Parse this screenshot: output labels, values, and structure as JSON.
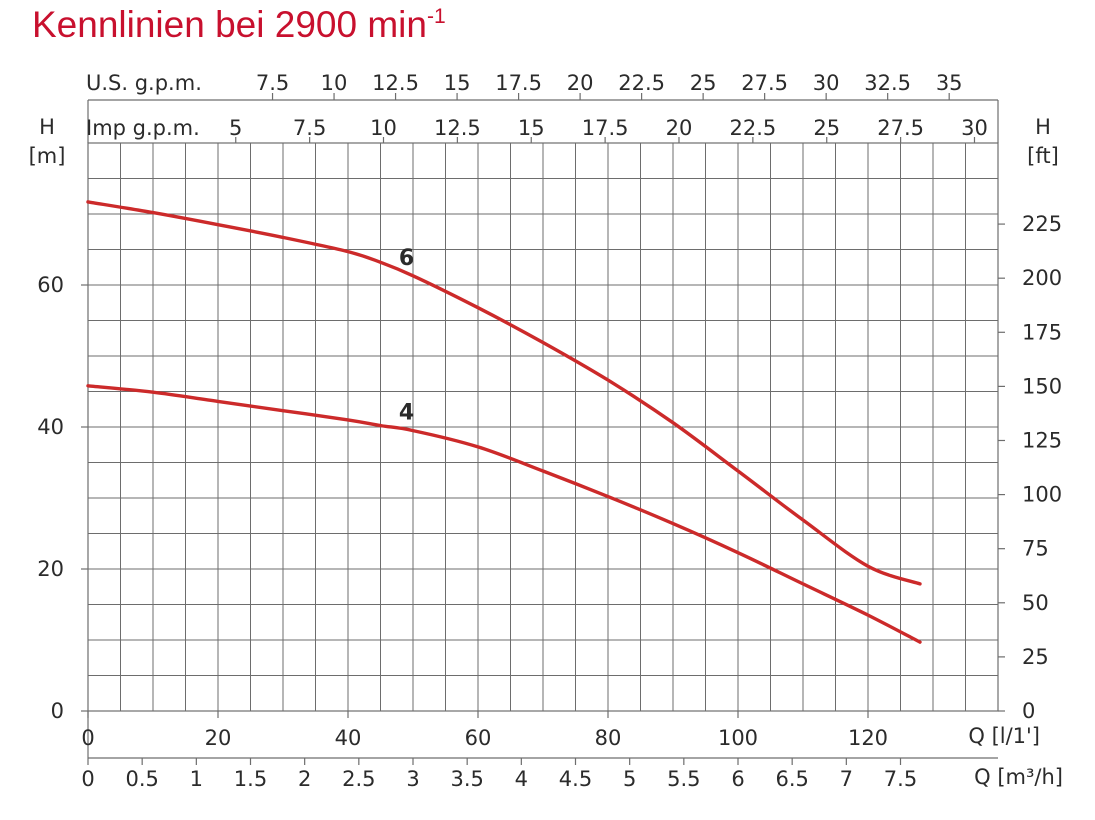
{
  "title": {
    "text": "Kennlinien bei 2900 min",
    "superscript": "-1"
  },
  "colors": {
    "title": "#c8102e",
    "curve": "#cc2a2a",
    "grid": "#6d6d6d",
    "text": "#2b2b2b"
  },
  "chart_data": {
    "type": "line",
    "grid": true,
    "x": {
      "label": "Q [l/1']",
      "range": [
        0,
        140
      ],
      "ticks": [
        "0",
        "20",
        "40",
        "60",
        "80",
        "100",
        "120"
      ],
      "tick_values": [
        0,
        20,
        40,
        60,
        80,
        100,
        120
      ]
    },
    "x_secondary": {
      "label": "Q [m³/h]",
      "ticks": [
        "0",
        "0.5",
        "1",
        "1.5",
        "2",
        "2.5",
        "3",
        "3.5",
        "4",
        "4.5",
        "5",
        "5.5",
        "6",
        "6.5",
        "7",
        "7.5"
      ],
      "tick_values": [
        0,
        0.5,
        1,
        1.5,
        2,
        2.5,
        3,
        3.5,
        4,
        4.5,
        5,
        5.5,
        6,
        6.5,
        7,
        7.5
      ]
    },
    "x_top_us": {
      "label": "U.S. g.p.m.",
      "ticks": [
        "7.5",
        "10",
        "12.5",
        "15",
        "17.5",
        "20",
        "22.5",
        "25",
        "27.5",
        "30",
        "32.5",
        "35"
      ],
      "tick_values": [
        7.5,
        10,
        12.5,
        15,
        17.5,
        20,
        22.5,
        25,
        27.5,
        30,
        32.5,
        35
      ]
    },
    "x_top_imp": {
      "label": "Imp g.p.m.",
      "ticks": [
        "5",
        "7.5",
        "10",
        "12.5",
        "15",
        "17.5",
        "20",
        "22.5",
        "25",
        "27.5",
        "30"
      ],
      "tick_values": [
        5,
        7.5,
        10,
        12.5,
        15,
        17.5,
        20,
        22.5,
        25,
        27.5,
        30
      ]
    },
    "y": {
      "label_top": "H",
      "label_unit": "[m]",
      "range": [
        0,
        80
      ],
      "ticks": [
        "0",
        "20",
        "40",
        "60"
      ],
      "tick_values": [
        0,
        20,
        40,
        60
      ]
    },
    "y_right": {
      "label_top": "H",
      "label_unit": "[ft]",
      "ticks": [
        "0",
        "25",
        "50",
        "75",
        "100",
        "125",
        "150",
        "175",
        "200",
        "225"
      ],
      "tick_values": [
        0,
        25,
        50,
        75,
        100,
        125,
        150,
        175,
        200,
        225
      ]
    },
    "series": [
      {
        "name": "6",
        "x": [
          0,
          10,
          20,
          30,
          40,
          45,
          50,
          60,
          70,
          80,
          90,
          100,
          110,
          120,
          128
        ],
        "y": [
          71.7,
          70.2,
          68.5,
          66.7,
          64.7,
          63.2,
          61.3,
          56.8,
          51.9,
          46.6,
          40.6,
          33.8,
          26.9,
          20.4,
          17.9
        ]
      },
      {
        "name": "4",
        "x": [
          0,
          10,
          20,
          30,
          40,
          45,
          50,
          60,
          70,
          80,
          90,
          100,
          110,
          120,
          128
        ],
        "y": [
          45.8,
          44.9,
          43.6,
          42.3,
          41.0,
          40.2,
          39.5,
          37.2,
          33.8,
          30.2,
          26.4,
          22.3,
          17.9,
          13.5,
          9.7
        ]
      }
    ]
  }
}
